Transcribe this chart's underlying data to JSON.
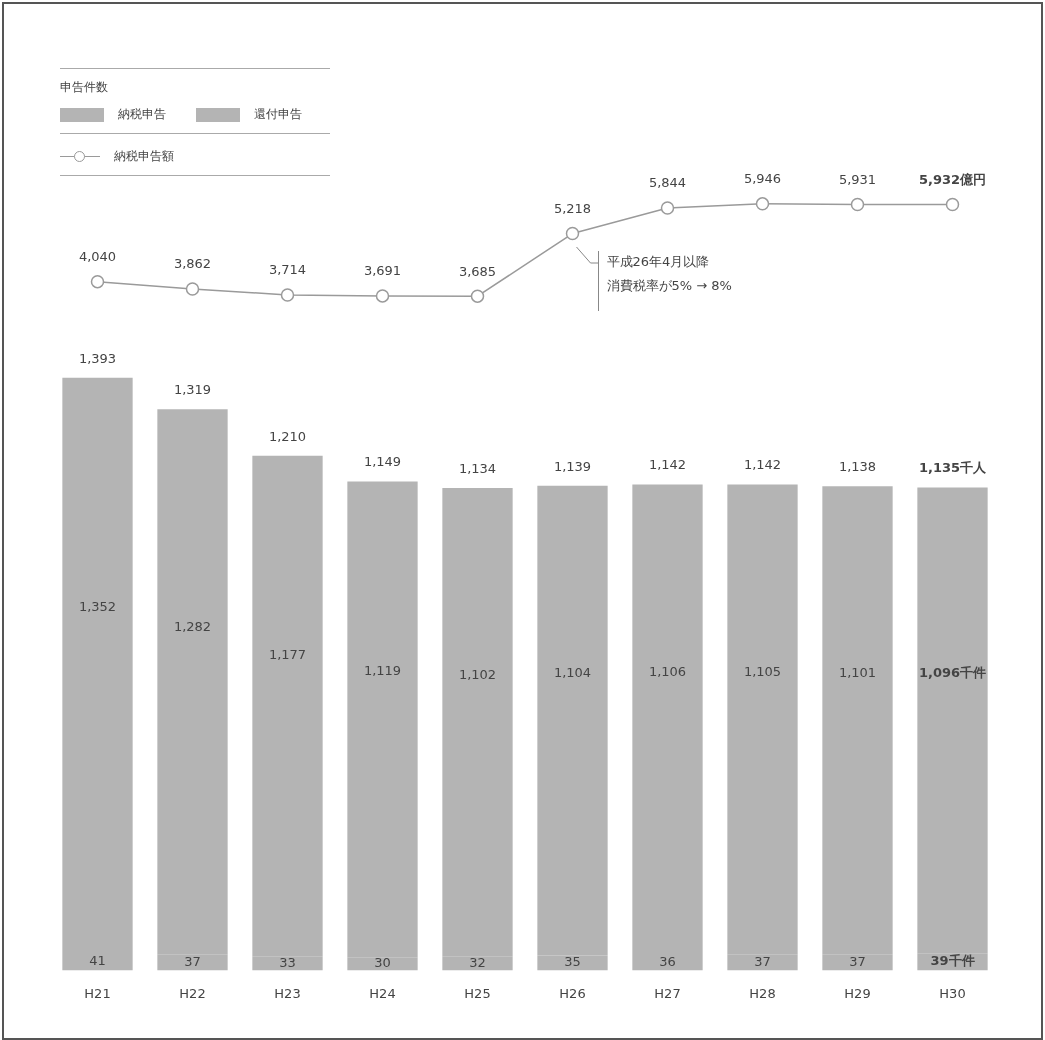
{
  "chart_data": [
    {
      "type": "line",
      "tick_labels": false,
      "legend": "top left",
      "marker": "circle",
      "data_labels": true,
      "categories": [
        null,
        null,
        null,
        null,
        null,
        null,
        null,
        null,
        null,
        null
      ],
      "series": [
        {
          "name": "納税申告額",
          "color": "#9a9a9a",
          "values": [
            4040,
            3862,
            3714,
            3691,
            3685,
            5218,
            5844,
            5946,
            5931,
            5932
          ],
          "value_labels": [
            "4,040",
            "3,862",
            "3,714",
            "3,691",
            "3,685",
            "5,218",
            "5,844",
            "5,946",
            "5,931",
            "5,932億円"
          ]
        }
      ],
      "annotations": [
        "平成26年4月以降消費税率が5% → 8%"
      ]
    },
    {
      "type": "bar",
      "stacked": true,
      "tick_labels": "x",
      "legend": "top left",
      "legend_title": "申告件数",
      "data_labels": true,
      "categories": [
        "H21",
        "H22",
        "H23",
        "H24",
        "H25",
        "H26",
        "H27",
        "H28",
        "H29",
        "H30"
      ],
      "series": [
        {
          "name": "還付申告",
          "color": "#b4b4b4",
          "values": [
            41,
            37,
            33,
            30,
            32,
            35,
            36,
            37,
            37,
            39
          ],
          "value_labels": [
            "41",
            "37",
            "33",
            "30",
            "32",
            "35",
            "36",
            "37",
            "37",
            "39千件"
          ]
        },
        {
          "name": "納税申告",
          "color": "#b4b4b4",
          "values": [
            1352,
            1282,
            1177,
            1119,
            1102,
            1104,
            1106,
            1105,
            1101,
            1096
          ],
          "value_labels": [
            "1,352",
            "1,282",
            "1,177",
            "1,119",
            "1,102",
            "1,104",
            "1,106",
            "1,105",
            "1,101",
            "1,096千件"
          ]
        }
      ],
      "totals": [
        "1,393",
        "1,319",
        "1,210",
        "1,149",
        "1,134",
        "1,139",
        "1,142",
        "1,142",
        "1,138",
        "1,135千人"
      ]
    }
  ]
}
